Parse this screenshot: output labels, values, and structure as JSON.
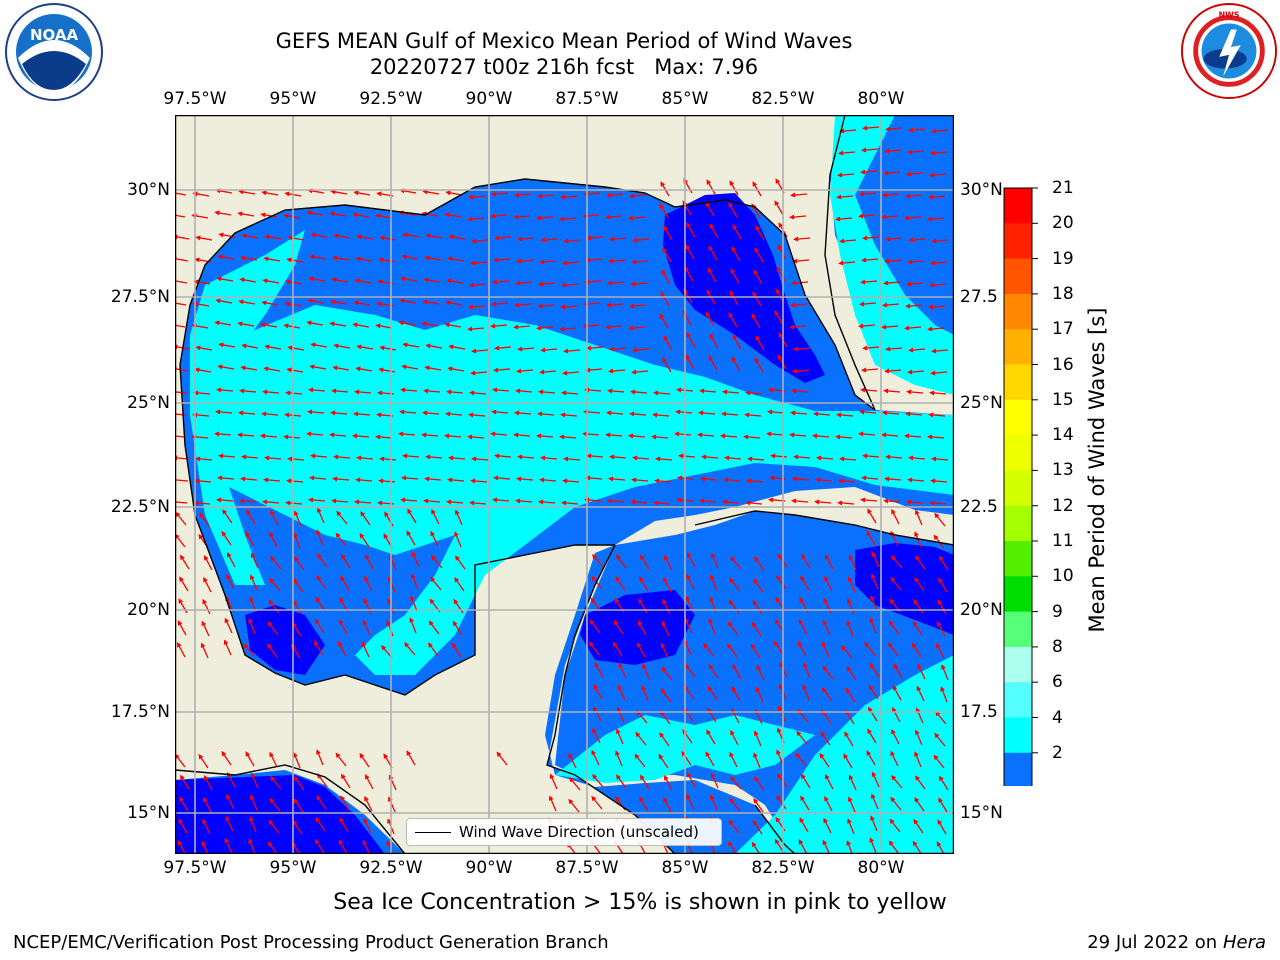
{
  "header": {
    "title_line1": "GEFS MEAN Gulf of Mexico Mean Period of Wind Waves",
    "title_line2": "20220727 t00z 216h fcst   Max: 7.96"
  },
  "logos": {
    "left": {
      "text": "NOAA",
      "ring_text": "NATIONAL OCEANIC AND ATMOSPHERIC ADMINISTRATION · U.S. DEPARTMENT OF COMMERCE"
    },
    "right": {
      "ring_text": "NATIONAL WEATHER SERVICE"
    }
  },
  "map": {
    "lon_ticks": [
      "97.5°W",
      "95°W",
      "92.5°W",
      "90°W",
      "87.5°W",
      "85°W",
      "82.5°W",
      "80°W"
    ],
    "lat_ticks": [
      "30°N",
      "27.5°N",
      "25°N",
      "22.5°N",
      "20°N",
      "17.5°N",
      "15°N"
    ],
    "lat_ticks_right": [
      "30°N",
      "27.5",
      "25°N",
      "22.5",
      "20°N",
      "17.5",
      "15°N"
    ],
    "colors": {
      "land": "#efeedc",
      "water_low": "#0a71ff",
      "water_mid": "#00ffff",
      "water_deep": "#0000ff",
      "arrow": "#ff0000",
      "grid": "#b0b0b0",
      "coast": "#000000"
    },
    "legend_label": "Wind Wave Direction (unscaled)"
  },
  "colorbar": {
    "title": "Mean Period of Wind Waves [s]",
    "labels": [
      "21",
      "20",
      "19",
      "18",
      "17",
      "16",
      "15",
      "14",
      "13",
      "12",
      "11",
      "10",
      "9",
      "8",
      "6",
      "4",
      "2"
    ],
    "colors": [
      "#ff0000",
      "#ff2200",
      "#ff5500",
      "#ff8800",
      "#ffb000",
      "#ffd700",
      "#ffff00",
      "#f0ff00",
      "#d4ff00",
      "#a4ff00",
      "#55ee00",
      "#00dd00",
      "#55ff77",
      "#aaffee",
      "#55ffff",
      "#00ffff",
      "#0a71ff",
      "#0000ff"
    ]
  },
  "footnote": "Sea Ice Concentration > 15% is shown in pink to yellow",
  "footer": {
    "left": "NCEP/EMC/Verification Post Processing Product Generation Branch",
    "right_prefix": "29 Jul 2022 on ",
    "right_host": "Hera"
  }
}
